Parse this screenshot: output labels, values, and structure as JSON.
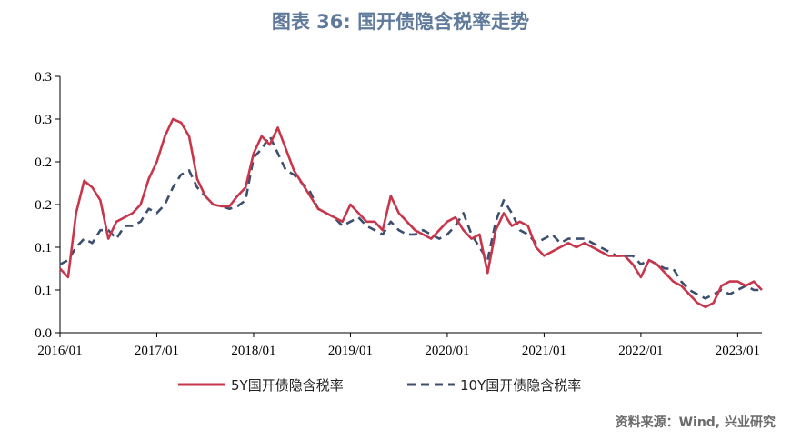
{
  "title": "图表 36: 国开债隐含税率走势",
  "source": "资料来源：Wind, 兴业研究",
  "colors": {
    "series_5y": "#c8364b",
    "series_10y": "#3d4f6e",
    "title": "#5f7a9a"
  },
  "chart_data": {
    "type": "line",
    "title": "图表 36: 国开债隐含税率走势",
    "xlabel": "",
    "ylabel": "",
    "ylim": [
      0,
      0.3
    ],
    "xlim": [
      "2016/01",
      "2023/04"
    ],
    "yticks": [
      {
        "value": 0.0,
        "label": "0.0"
      },
      {
        "value": 0.05,
        "label": "0.1"
      },
      {
        "value": 0.1,
        "label": "0.1"
      },
      {
        "value": 0.15,
        "label": "0.2"
      },
      {
        "value": 0.2,
        "label": "0.2"
      },
      {
        "value": 0.25,
        "label": "0.3"
      },
      {
        "value": 0.3,
        "label": "0.3"
      }
    ],
    "xticks": [
      "2016/01",
      "2017/01",
      "2018/01",
      "2019/01",
      "2020/01",
      "2021/01",
      "2022/01",
      "2023/01"
    ],
    "legend_position": "bottom",
    "grid": false,
    "series": [
      {
        "name": "5Y国开债隐含税率",
        "style": "solid",
        "color": "#c8364b",
        "points": [
          [
            "2016/01",
            0.075
          ],
          [
            "2016/02",
            0.065
          ],
          [
            "2016/03",
            0.14
          ],
          [
            "2016/04",
            0.178
          ],
          [
            "2016/05",
            0.17
          ],
          [
            "2016/06",
            0.155
          ],
          [
            "2016/07",
            0.11
          ],
          [
            "2016/08",
            0.13
          ],
          [
            "2016/09",
            0.135
          ],
          [
            "2016/10",
            0.14
          ],
          [
            "2016/11",
            0.15
          ],
          [
            "2016/12",
            0.18
          ],
          [
            "2017/01",
            0.2
          ],
          [
            "2017/02",
            0.23
          ],
          [
            "2017/03",
            0.25
          ],
          [
            "2017/04",
            0.246
          ],
          [
            "2017/05",
            0.23
          ],
          [
            "2017/06",
            0.18
          ],
          [
            "2017/07",
            0.16
          ],
          [
            "2017/08",
            0.15
          ],
          [
            "2017/09",
            0.148
          ],
          [
            "2017/10",
            0.148
          ],
          [
            "2017/11",
            0.16
          ],
          [
            "2017/12",
            0.17
          ],
          [
            "2018/01",
            0.21
          ],
          [
            "2018/02",
            0.23
          ],
          [
            "2018/03",
            0.22
          ],
          [
            "2018/04",
            0.24
          ],
          [
            "2018/05",
            0.215
          ],
          [
            "2018/06",
            0.19
          ],
          [
            "2018/07",
            0.175
          ],
          [
            "2018/08",
            0.16
          ],
          [
            "2018/09",
            0.145
          ],
          [
            "2018/10",
            0.14
          ],
          [
            "2018/11",
            0.135
          ],
          [
            "2018/12",
            0.13
          ],
          [
            "2019/01",
            0.15
          ],
          [
            "2019/02",
            0.14
          ],
          [
            "2019/03",
            0.13
          ],
          [
            "2019/04",
            0.13
          ],
          [
            "2019/05",
            0.12
          ],
          [
            "2019/06",
            0.16
          ],
          [
            "2019/07",
            0.14
          ],
          [
            "2019/08",
            0.13
          ],
          [
            "2019/09",
            0.12
          ],
          [
            "2019/10",
            0.115
          ],
          [
            "2019/11",
            0.11
          ],
          [
            "2019/12",
            0.12
          ],
          [
            "2020/01",
            0.13
          ],
          [
            "2020/02",
            0.135
          ],
          [
            "2020/03",
            0.12
          ],
          [
            "2020/04",
            0.11
          ],
          [
            "2020/05",
            0.115
          ],
          [
            "2020/06",
            0.07
          ],
          [
            "2020/07",
            0.12
          ],
          [
            "2020/08",
            0.14
          ],
          [
            "2020/09",
            0.125
          ],
          [
            "2020/10",
            0.13
          ],
          [
            "2020/11",
            0.125
          ],
          [
            "2020/12",
            0.1
          ],
          [
            "2021/01",
            0.09
          ],
          [
            "2021/02",
            0.095
          ],
          [
            "2021/03",
            0.1
          ],
          [
            "2021/04",
            0.105
          ],
          [
            "2021/05",
            0.1
          ],
          [
            "2021/06",
            0.105
          ],
          [
            "2021/07",
            0.1
          ],
          [
            "2021/08",
            0.095
          ],
          [
            "2021/09",
            0.09
          ],
          [
            "2021/10",
            0.09
          ],
          [
            "2021/11",
            0.09
          ],
          [
            "2021/12",
            0.08
          ],
          [
            "2022/01",
            0.065
          ],
          [
            "2022/02",
            0.085
          ],
          [
            "2022/03",
            0.08
          ],
          [
            "2022/04",
            0.07
          ],
          [
            "2022/05",
            0.06
          ],
          [
            "2022/06",
            0.055
          ],
          [
            "2022/07",
            0.045
          ],
          [
            "2022/08",
            0.035
          ],
          [
            "2022/09",
            0.03
          ],
          [
            "2022/10",
            0.035
          ],
          [
            "2022/11",
            0.055
          ],
          [
            "2022/12",
            0.06
          ],
          [
            "2023/01",
            0.06
          ],
          [
            "2023/02",
            0.055
          ],
          [
            "2023/03",
            0.06
          ],
          [
            "2023/04",
            0.05
          ]
        ]
      },
      {
        "name": "10Y国开债隐含税率",
        "style": "dashed",
        "color": "#3d4f6e",
        "points": [
          [
            "2016/01",
            0.08
          ],
          [
            "2016/02",
            0.085
          ],
          [
            "2016/03",
            0.1
          ],
          [
            "2016/04",
            0.11
          ],
          [
            "2016/05",
            0.105
          ],
          [
            "2016/06",
            0.12
          ],
          [
            "2016/07",
            0.12
          ],
          [
            "2016/08",
            0.11
          ],
          [
            "2016/09",
            0.125
          ],
          [
            "2016/10",
            0.125
          ],
          [
            "2016/11",
            0.13
          ],
          [
            "2016/12",
            0.145
          ],
          [
            "2017/01",
            0.14
          ],
          [
            "2017/02",
            0.15
          ],
          [
            "2017/03",
            0.17
          ],
          [
            "2017/04",
            0.185
          ],
          [
            "2017/05",
            0.19
          ],
          [
            "2017/06",
            0.17
          ],
          [
            "2017/07",
            0.16
          ],
          [
            "2017/08",
            0.15
          ],
          [
            "2017/09",
            0.148
          ],
          [
            "2017/10",
            0.145
          ],
          [
            "2017/11",
            0.148
          ],
          [
            "2017/12",
            0.155
          ],
          [
            "2018/01",
            0.205
          ],
          [
            "2018/02",
            0.215
          ],
          [
            "2018/03",
            0.23
          ],
          [
            "2018/04",
            0.21
          ],
          [
            "2018/05",
            0.19
          ],
          [
            "2018/06",
            0.185
          ],
          [
            "2018/07",
            0.175
          ],
          [
            "2018/08",
            0.165
          ],
          [
            "2018/09",
            0.145
          ],
          [
            "2018/10",
            0.14
          ],
          [
            "2018/11",
            0.135
          ],
          [
            "2018/12",
            0.125
          ],
          [
            "2019/01",
            0.13
          ],
          [
            "2019/02",
            0.135
          ],
          [
            "2019/03",
            0.125
          ],
          [
            "2019/04",
            0.12
          ],
          [
            "2019/05",
            0.115
          ],
          [
            "2019/06",
            0.13
          ],
          [
            "2019/07",
            0.12
          ],
          [
            "2019/08",
            0.115
          ],
          [
            "2019/09",
            0.115
          ],
          [
            "2019/10",
            0.12
          ],
          [
            "2019/11",
            0.115
          ],
          [
            "2019/12",
            0.11
          ],
          [
            "2020/01",
            0.115
          ],
          [
            "2020/02",
            0.125
          ],
          [
            "2020/03",
            0.14
          ],
          [
            "2020/04",
            0.115
          ],
          [
            "2020/05",
            0.1
          ],
          [
            "2020/06",
            0.085
          ],
          [
            "2020/07",
            0.13
          ],
          [
            "2020/08",
            0.155
          ],
          [
            "2020/09",
            0.14
          ],
          [
            "2020/10",
            0.12
          ],
          [
            "2020/11",
            0.115
          ],
          [
            "2020/12",
            0.105
          ],
          [
            "2021/01",
            0.11
          ],
          [
            "2021/02",
            0.115
          ],
          [
            "2021/03",
            0.105
          ],
          [
            "2021/04",
            0.11
          ],
          [
            "2021/05",
            0.11
          ],
          [
            "2021/06",
            0.11
          ],
          [
            "2021/07",
            0.105
          ],
          [
            "2021/08",
            0.1
          ],
          [
            "2021/09",
            0.095
          ],
          [
            "2021/10",
            0.09
          ],
          [
            "2021/11",
            0.09
          ],
          [
            "2021/12",
            0.09
          ],
          [
            "2022/01",
            0.08
          ],
          [
            "2022/02",
            0.085
          ],
          [
            "2022/03",
            0.08
          ],
          [
            "2022/04",
            0.075
          ],
          [
            "2022/05",
            0.075
          ],
          [
            "2022/06",
            0.06
          ],
          [
            "2022/07",
            0.05
          ],
          [
            "2022/08",
            0.045
          ],
          [
            "2022/09",
            0.04
          ],
          [
            "2022/10",
            0.045
          ],
          [
            "2022/11",
            0.05
          ],
          [
            "2022/12",
            0.045
          ],
          [
            "2023/01",
            0.05
          ],
          [
            "2023/02",
            0.055
          ],
          [
            "2023/03",
            0.05
          ],
          [
            "2023/04",
            0.05
          ]
        ]
      }
    ]
  }
}
